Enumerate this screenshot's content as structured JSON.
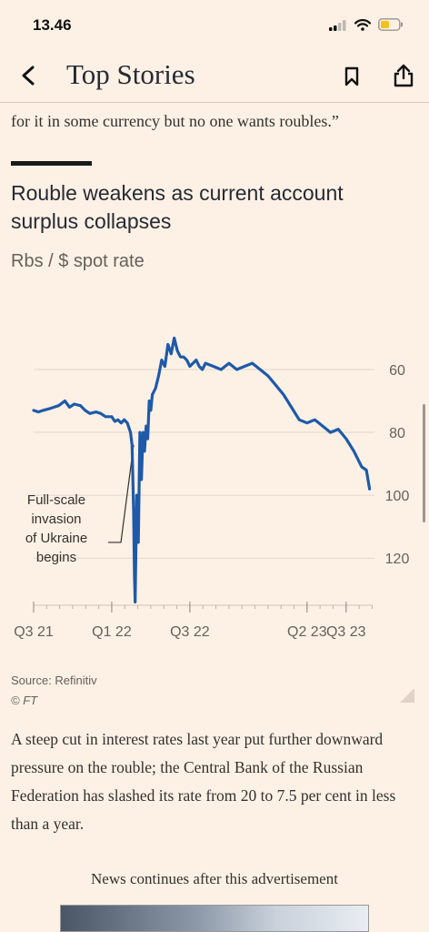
{
  "status_bar": {
    "time": "13.46"
  },
  "nav": {
    "title": "Top Stories"
  },
  "article": {
    "quote_line": "for it in some currency but no one wants roubles.”",
    "body": "A steep cut in interest rates last year put further downward pressure on the rouble; the Central Bank of the Russian Federation has slashed its rate from 20 to 7.5 per cent in less than a year.",
    "ad_label": "News continues after this advertisement"
  },
  "chart": {
    "title": "Rouble weakens as current account surplus collapses",
    "subtitle": "Rbs / $ spot rate",
    "source": "Source: Refinitiv",
    "copyright": "© FT",
    "annotation_lines": [
      "Full-scale",
      "invasion",
      "of Ukraine",
      "begins"
    ],
    "line_color": "#1e5aa8"
  },
  "chart_data": {
    "type": "line",
    "title": "Rouble weakens as current account surplus collapses",
    "subtitle": "Rbs / $ spot rate",
    "y_inverted": true,
    "ylim": [
      38,
      135
    ],
    "yticks": [
      60,
      80,
      100,
      120
    ],
    "xlim": [
      2021.5,
      2023.67
    ],
    "xticks": [
      {
        "label": "Q3 21",
        "x": 2021.5
      },
      {
        "label": "Q1 22",
        "x": 2022.0
      },
      {
        "label": "Q3 22",
        "x": 2022.5
      },
      {
        "label": "Q2 23",
        "x": 2023.25
      },
      {
        "label": "Q3 23",
        "x": 2023.5
      }
    ],
    "series": [
      {
        "x": [
          2021.5,
          2021.53,
          2021.56,
          2021.6,
          2021.63,
          2021.66,
          2021.7,
          2021.73,
          2021.76,
          2021.8,
          2021.83,
          2021.86,
          2021.9,
          2021.93,
          2021.96,
          2022.0,
          2022.02,
          2022.04,
          2022.06,
          2022.08,
          2022.1,
          2022.12,
          2022.13,
          2022.14,
          2022.145,
          2022.15,
          2022.16,
          2022.17,
          2022.18,
          2022.19,
          2022.2,
          2022.21,
          2022.22,
          2022.23,
          2022.24,
          2022.25,
          2022.26,
          2022.28,
          2022.3,
          2022.32,
          2022.34,
          2022.36,
          2022.38,
          2022.4,
          2022.42,
          2022.44,
          2022.46,
          2022.48,
          2022.5,
          2022.52,
          2022.54,
          2022.56,
          2022.58,
          2022.6,
          2022.65,
          2022.7,
          2022.75,
          2022.8,
          2022.85,
          2022.9,
          2022.95,
          2023.0,
          2023.05,
          2023.1,
          2023.15,
          2023.2,
          2023.25,
          2023.3,
          2023.35,
          2023.4,
          2023.45,
          2023.5,
          2023.55,
          2023.6,
          2023.63,
          2023.65
        ],
        "values": [
          73,
          73.5,
          73,
          72.5,
          72,
          71.5,
          70,
          72,
          71,
          71.5,
          73,
          74,
          73.5,
          74,
          75,
          75,
          76.5,
          76,
          77,
          76,
          77,
          80,
          84,
          105,
          125,
          134,
          100,
          115,
          80,
          95,
          80,
          86,
          78,
          82,
          70,
          73,
          68,
          66,
          62,
          57,
          59,
          52,
          55,
          50,
          54,
          56,
          56,
          57,
          59,
          58,
          57,
          59,
          60,
          58,
          59,
          60,
          58,
          60,
          59,
          58,
          60,
          62,
          65,
          68,
          72,
          76,
          77,
          76,
          78,
          80,
          79,
          82,
          86,
          91,
          92,
          98
        ]
      }
    ]
  }
}
